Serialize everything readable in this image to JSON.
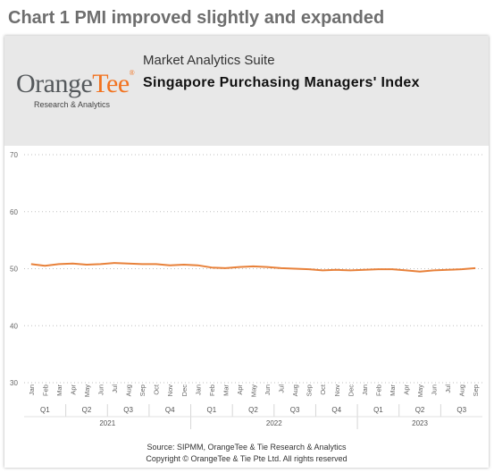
{
  "heading": "Chart 1 PMI improved slightly and expanded",
  "header": {
    "suite": "Market Analytics Suite",
    "title": "Singapore Purchasing Managers' Index",
    "logo": {
      "orange": "Orange",
      "tee": "Tee",
      "reg": "®",
      "sub": "Research & Analytics"
    }
  },
  "footer": {
    "source": "Source: SIPMM, OrangeTee & Tie Research & Analytics",
    "copyright": "Copyright © OrangeTee & Tie Pte Ltd. All rights reserved"
  },
  "colors": {
    "line": "#e8813a",
    "grid": "#bfbfbf",
    "logo_orange": "#f27320"
  },
  "chart_data": {
    "type": "line",
    "ylim": [
      30,
      70
    ],
    "yticks": [
      30,
      40,
      50,
      60,
      70
    ],
    "grid": "horizontal dotted",
    "months": [
      "Jan",
      "Feb",
      "Mar",
      "Apr",
      "May",
      "Jun",
      "Jul",
      "Aug",
      "Sep",
      "Oct",
      "Nov",
      "Dec",
      "Jan",
      "Feb",
      "Mar",
      "Apr",
      "May",
      "Jun",
      "Jul",
      "Aug",
      "Sep",
      "Oct",
      "Nov",
      "Dec",
      "Jan",
      "Feb",
      "Mar",
      "Apr",
      "May",
      "Jun",
      "Jul",
      "Aug",
      "Sep"
    ],
    "quarters": [
      "Q1",
      "Q2",
      "Q3",
      "Q4",
      "Q1",
      "Q2",
      "Q3",
      "Q4",
      "Q1",
      "Q2",
      "Q3"
    ],
    "years": [
      "2021",
      "2022",
      "2023"
    ],
    "series": [
      {
        "values": [
          50.8,
          50.5,
          50.8,
          50.9,
          50.7,
          50.8,
          51.0,
          50.9,
          50.8,
          50.8,
          50.6,
          50.7,
          50.6,
          50.2,
          50.1,
          50.3,
          50.4,
          50.3,
          50.1,
          50.0,
          49.9,
          49.7,
          49.8,
          49.7,
          49.8,
          49.9,
          49.9,
          49.7,
          49.5,
          49.7,
          49.8,
          49.9,
          50.1
        ]
      }
    ]
  }
}
